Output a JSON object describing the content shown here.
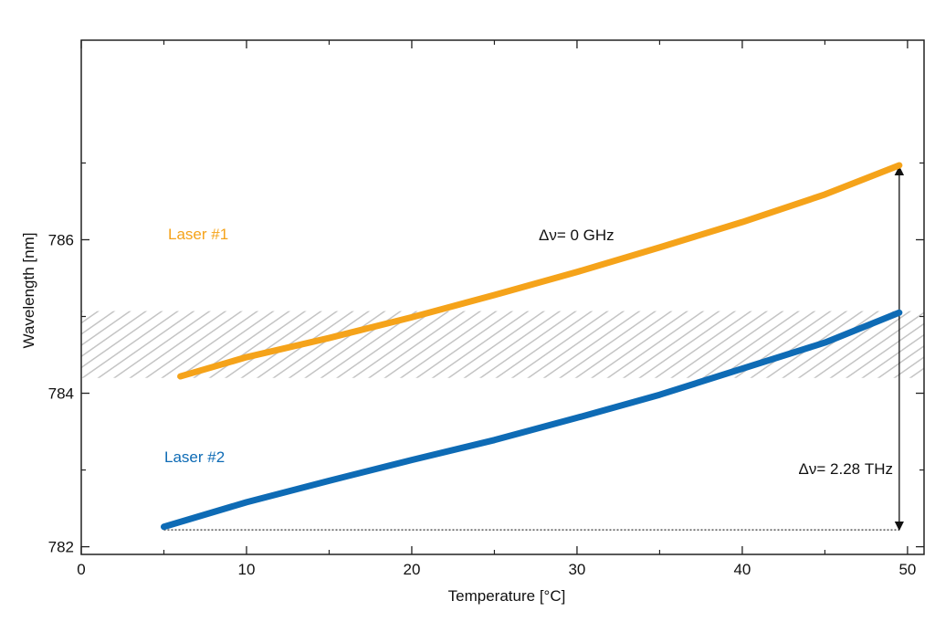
{
  "chart_data": {
    "type": "line",
    "title": "",
    "xlabel": "Temperature [°C]",
    "ylabel": "Wavelength [nm]",
    "xlim": [
      0,
      51
    ],
    "ylim": [
      781.9,
      788.6
    ],
    "xticks": [
      0,
      10,
      20,
      30,
      40,
      50
    ],
    "yticks": [
      782,
      784,
      786
    ],
    "minor_yticks": [
      783,
      785,
      787
    ],
    "minor_xticks": [
      5,
      15,
      25,
      35,
      45
    ],
    "grid": false,
    "legend": "none",
    "series": [
      {
        "name": "Laser #1",
        "color": "#F5A31A",
        "x": [
          6,
          10,
          15,
          20,
          25,
          30,
          35,
          40,
          45,
          49.5
        ],
        "y": [
          784.22,
          784.47,
          784.72,
          784.99,
          785.28,
          785.58,
          785.9,
          786.23,
          786.59,
          786.97
        ]
      },
      {
        "name": "Laser #2",
        "color": "#0E6BB5",
        "x": [
          5,
          10,
          15,
          20,
          25,
          30,
          35,
          40,
          45,
          49.5
        ],
        "y": [
          782.26,
          782.58,
          782.86,
          783.13,
          783.39,
          783.68,
          783.98,
          784.32,
          784.66,
          785.05
        ]
      }
    ],
    "band": {
      "y_range": [
        784.2,
        785.07
      ],
      "pattern": "hatched",
      "color": "#bdbdbd"
    },
    "annotations": {
      "laser1_label": "Laser #1",
      "laser2_label": "Laser #2",
      "delta_zero": "Δν= 0 GHz",
      "delta_thz": "Δν= 2.28 THz"
    },
    "arrow": {
      "x": 49.5,
      "y_from": 782.22,
      "y_to": 786.95
    },
    "dotted_line": {
      "y": 782.22,
      "x_from": 5,
      "x_to": 49.5
    }
  }
}
